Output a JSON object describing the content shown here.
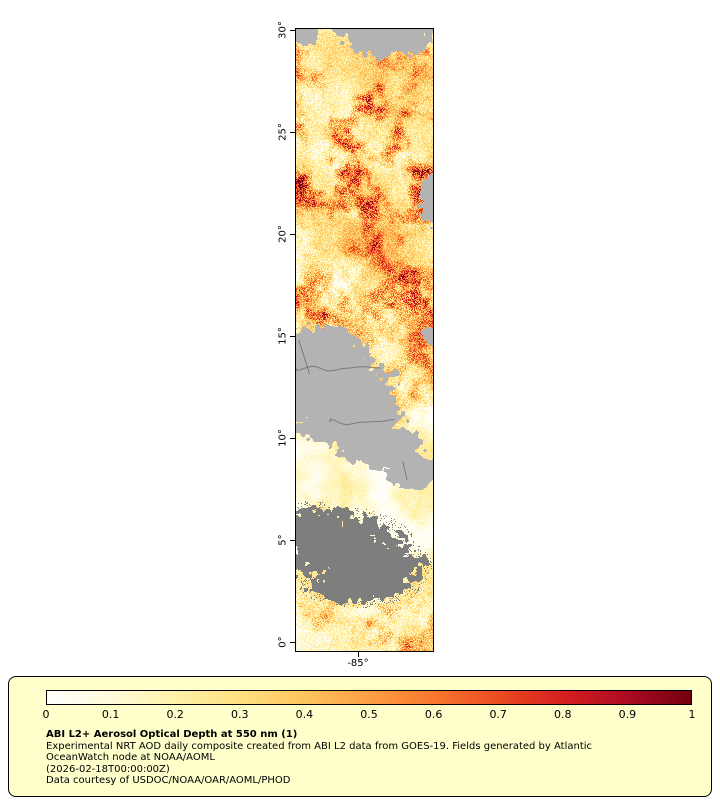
{
  "figure": {
    "lat_tick_labels": [
      "30°",
      "25°",
      "20°",
      "15°",
      "10°",
      "5°",
      "0°"
    ],
    "lon_tick_labels": [
      "-85°"
    ]
  },
  "colorbar": {
    "tick_labels": [
      "0",
      "0.1",
      "0.2",
      "0.3",
      "0.4",
      "0.5",
      "0.6",
      "0.7",
      "0.8",
      "0.9",
      "1"
    ],
    "colormap": [
      "#ffffff",
      "#fffbda",
      "#fff1a8",
      "#fee080",
      "#fec45e",
      "#fd9f44",
      "#f9772e",
      "#ea4c22",
      "#d6201f",
      "#ad0b23",
      "#73000f"
    ]
  },
  "caption": {
    "title": "ABI L2+ Aerosol Optical Depth at 550 nm (1)",
    "lines": [
      "Experimental NRT AOD daily composite created from ABI L2 data from GOES-19. Fields generated by Atlantic",
      "OceanWatch node at NOAA/AOML",
      "(2026-02-18T00:00:00Z)",
      "Data courtesy of USDOC/NOAA/OAR/AOML/PHOD"
    ]
  },
  "map_colors": {
    "land_gray": "#b3b3b3",
    "missing_gray": "#7e7e7e",
    "border_line": "#5f5f5f",
    "legend_bg": "#ffffcc"
  }
}
